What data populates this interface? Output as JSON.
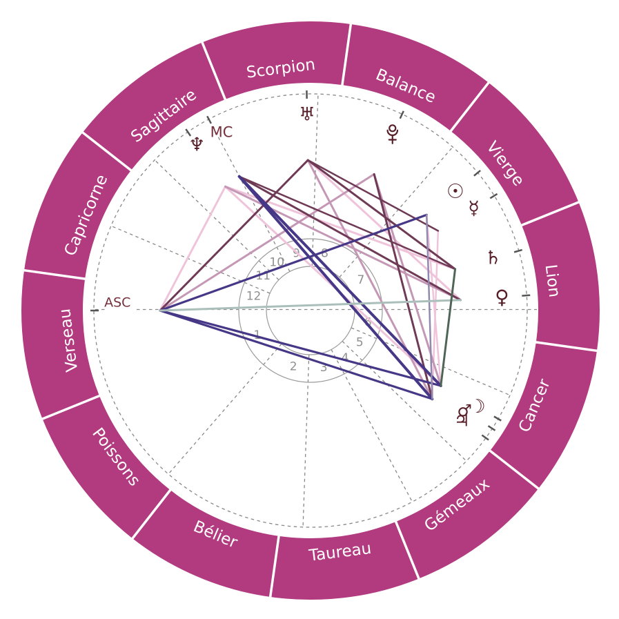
{
  "chart_data": {
    "type": "radial",
    "subtype": "astrology-natal-wheel",
    "language": "fr",
    "signs": [
      {
        "label": "Scorpion",
        "center_angle_deg": 97,
        "rotation_deg": -7
      },
      {
        "label": "Balance",
        "center_angle_deg": 67,
        "rotation_deg": 23
      },
      {
        "label": "Vierge",
        "center_angle_deg": 37,
        "rotation_deg": 53
      },
      {
        "label": "Lion",
        "center_angle_deg": 7,
        "rotation_deg": 83
      },
      {
        "label": "Cancer",
        "center_angle_deg": -23,
        "rotation_deg": -67
      },
      {
        "label": "Gémeaux",
        "center_angle_deg": -53,
        "rotation_deg": -37
      },
      {
        "label": "Taureau",
        "center_angle_deg": -83,
        "rotation_deg": -7
      },
      {
        "label": "Bélier",
        "center_angle_deg": -113,
        "rotation_deg": 23
      },
      {
        "label": "Poissons",
        "center_angle_deg": -143,
        "rotation_deg": 53
      },
      {
        "label": "Verseau",
        "center_angle_deg": -173,
        "rotation_deg": -97
      },
      {
        "label": "Capricorne",
        "center_angle_deg": 157,
        "rotation_deg": -67
      },
      {
        "label": "Sagittaire",
        "center_angle_deg": 127,
        "rotation_deg": -37
      }
    ],
    "sign_boundary_angles_deg": [
      22,
      52,
      82,
      112,
      142,
      172,
      202,
      232,
      262,
      292,
      322,
      352
    ],
    "houses": {
      "numbers": [
        "1",
        "2",
        "3",
        "4",
        "5",
        "6",
        "7",
        "8",
        "9",
        "10",
        "11",
        "12"
      ],
      "cusp_angles_deg": [
        180,
        229,
        268,
        298,
        316,
        337,
        0,
        49,
        88,
        118,
        136,
        157
      ],
      "number_angles_deg": [
        205,
        253,
        283,
        306,
        327,
        348,
        31,
        76,
        104,
        125,
        144,
        166
      ]
    },
    "axes": {
      "asc_label": "ASC",
      "mc_label": "MC",
      "asc_angle_deg": 180,
      "mc_angle_deg": 118
    },
    "planets": [
      {
        "name": "uranus",
        "glyph": "♅",
        "angle_deg": 91,
        "glyph_radius": 284,
        "size": 27
      },
      {
        "name": "pluto",
        "glyph": "pluto-orb-crescent-cross",
        "angle_deg": 65,
        "glyph_radius": 281,
        "size": 27
      },
      {
        "name": "sun",
        "glyph": "☉",
        "angle_deg": 39.5,
        "glyph_radius": 272,
        "size": 29
      },
      {
        "name": "mercury",
        "glyph": "☿",
        "angle_deg": 32,
        "glyph_radius": 279,
        "size": 27
      },
      {
        "name": "saturn",
        "glyph": "♄",
        "angle_deg": 16,
        "glyph_radius": 275,
        "size": 27
      },
      {
        "name": "venus",
        "glyph": "♀",
        "angle_deg": 4,
        "glyph_radius": 278,
        "size": 28
      },
      {
        "name": "moon",
        "glyph": "☽",
        "angle_deg": -30,
        "glyph_radius": 279,
        "size": 27
      },
      {
        "name": "mars",
        "glyph": "♂",
        "angle_deg": -33,
        "glyph_radius": 266,
        "size": 24
      },
      {
        "name": "jupiter",
        "glyph": "♃",
        "angle_deg": -36,
        "glyph_radius": 271,
        "size": 26
      },
      {
        "name": "neptune",
        "glyph": "♆",
        "angle_deg": 124.5,
        "glyph_radius": 291,
        "size": 27
      }
    ],
    "aspects": [
      {
        "from": "asc",
        "to": "neptune",
        "color": "aspect_pink",
        "width": 3
      },
      {
        "from": "neptune",
        "to": "saturn",
        "color": "aspect_pink",
        "width": 3
      },
      {
        "from": "neptune",
        "to": "moon",
        "color": "aspect_pink",
        "width": 3
      },
      {
        "from": "uranus",
        "to": "venus",
        "color": "aspect_pink",
        "width": 3
      },
      {
        "from": "sun",
        "to": "moon",
        "color": "aspect_pink",
        "width": 2.5
      },
      {
        "from": "mercury",
        "to": "jupiter",
        "color": "aspect_pink",
        "width": 2.5
      },
      {
        "from": "asc",
        "to": "pluto",
        "color": "aspect_rose",
        "width": 3
      },
      {
        "from": "neptune",
        "to": "venus",
        "color": "aspect_rose",
        "width": 3
      },
      {
        "from": "uranus",
        "to": "jupiter",
        "color": "aspect_rose",
        "width": 3
      },
      {
        "from": "pluto",
        "to": "moon",
        "color": "aspect_rose",
        "width": 3
      },
      {
        "from": "asc",
        "to": "uranus",
        "color": "aspect_plum",
        "width": 3
      },
      {
        "from": "mc",
        "to": "venus",
        "color": "aspect_plum",
        "width": 3
      },
      {
        "from": "mc",
        "to": "saturn",
        "color": "aspect_plum",
        "width": 2.5
      },
      {
        "from": "uranus",
        "to": "saturn",
        "color": "aspect_plum",
        "width": 3
      },
      {
        "from": "uranus",
        "to": "mercury",
        "color": "aspect_plum",
        "width": 2.5
      },
      {
        "from": "pluto",
        "to": "jupiter",
        "color": "aspect_plum",
        "width": 3
      },
      {
        "from": "asc",
        "to": "sun",
        "color": "aspect_indigo",
        "width": 3.2
      },
      {
        "from": "asc",
        "to": "moon",
        "color": "aspect_indigo",
        "width": 3.2
      },
      {
        "from": "asc",
        "to": "jupiter",
        "color": "aspect_indigo",
        "width": 3.2
      },
      {
        "from": "mc",
        "to": "moon",
        "color": "aspect_indigo",
        "width": 4
      },
      {
        "from": "mc",
        "to": "jupiter",
        "color": "aspect_indigo",
        "width": 4
      },
      {
        "from": "sun",
        "to": "jupiter",
        "color": "aspect_lavender",
        "width": 2.5
      },
      {
        "from": "asc",
        "to": "venus",
        "color": "aspect_teal",
        "width": 3
      },
      {
        "from": "saturn",
        "to": "moon",
        "color": "aspect_green",
        "width": 3
      }
    ],
    "colors": {
      "ring": "#b23a7f",
      "ring_divider": "#ffffff",
      "ring_text": "#ffffff",
      "glyph": "#571f28",
      "axis_text": "#76303c",
      "wheel_lines": "#9a9a9a",
      "dashed": "#888888",
      "house_number": "#8f8f8f",
      "tick": "#555555",
      "aspect_pink": "#efc4db",
      "aspect_rose": "#c497b5",
      "aspect_plum": "#6f3a55",
      "aspect_indigo": "#473787",
      "aspect_lavender": "#9189ae",
      "aspect_teal": "#abbfba",
      "aspect_green": "#4f6557"
    }
  }
}
